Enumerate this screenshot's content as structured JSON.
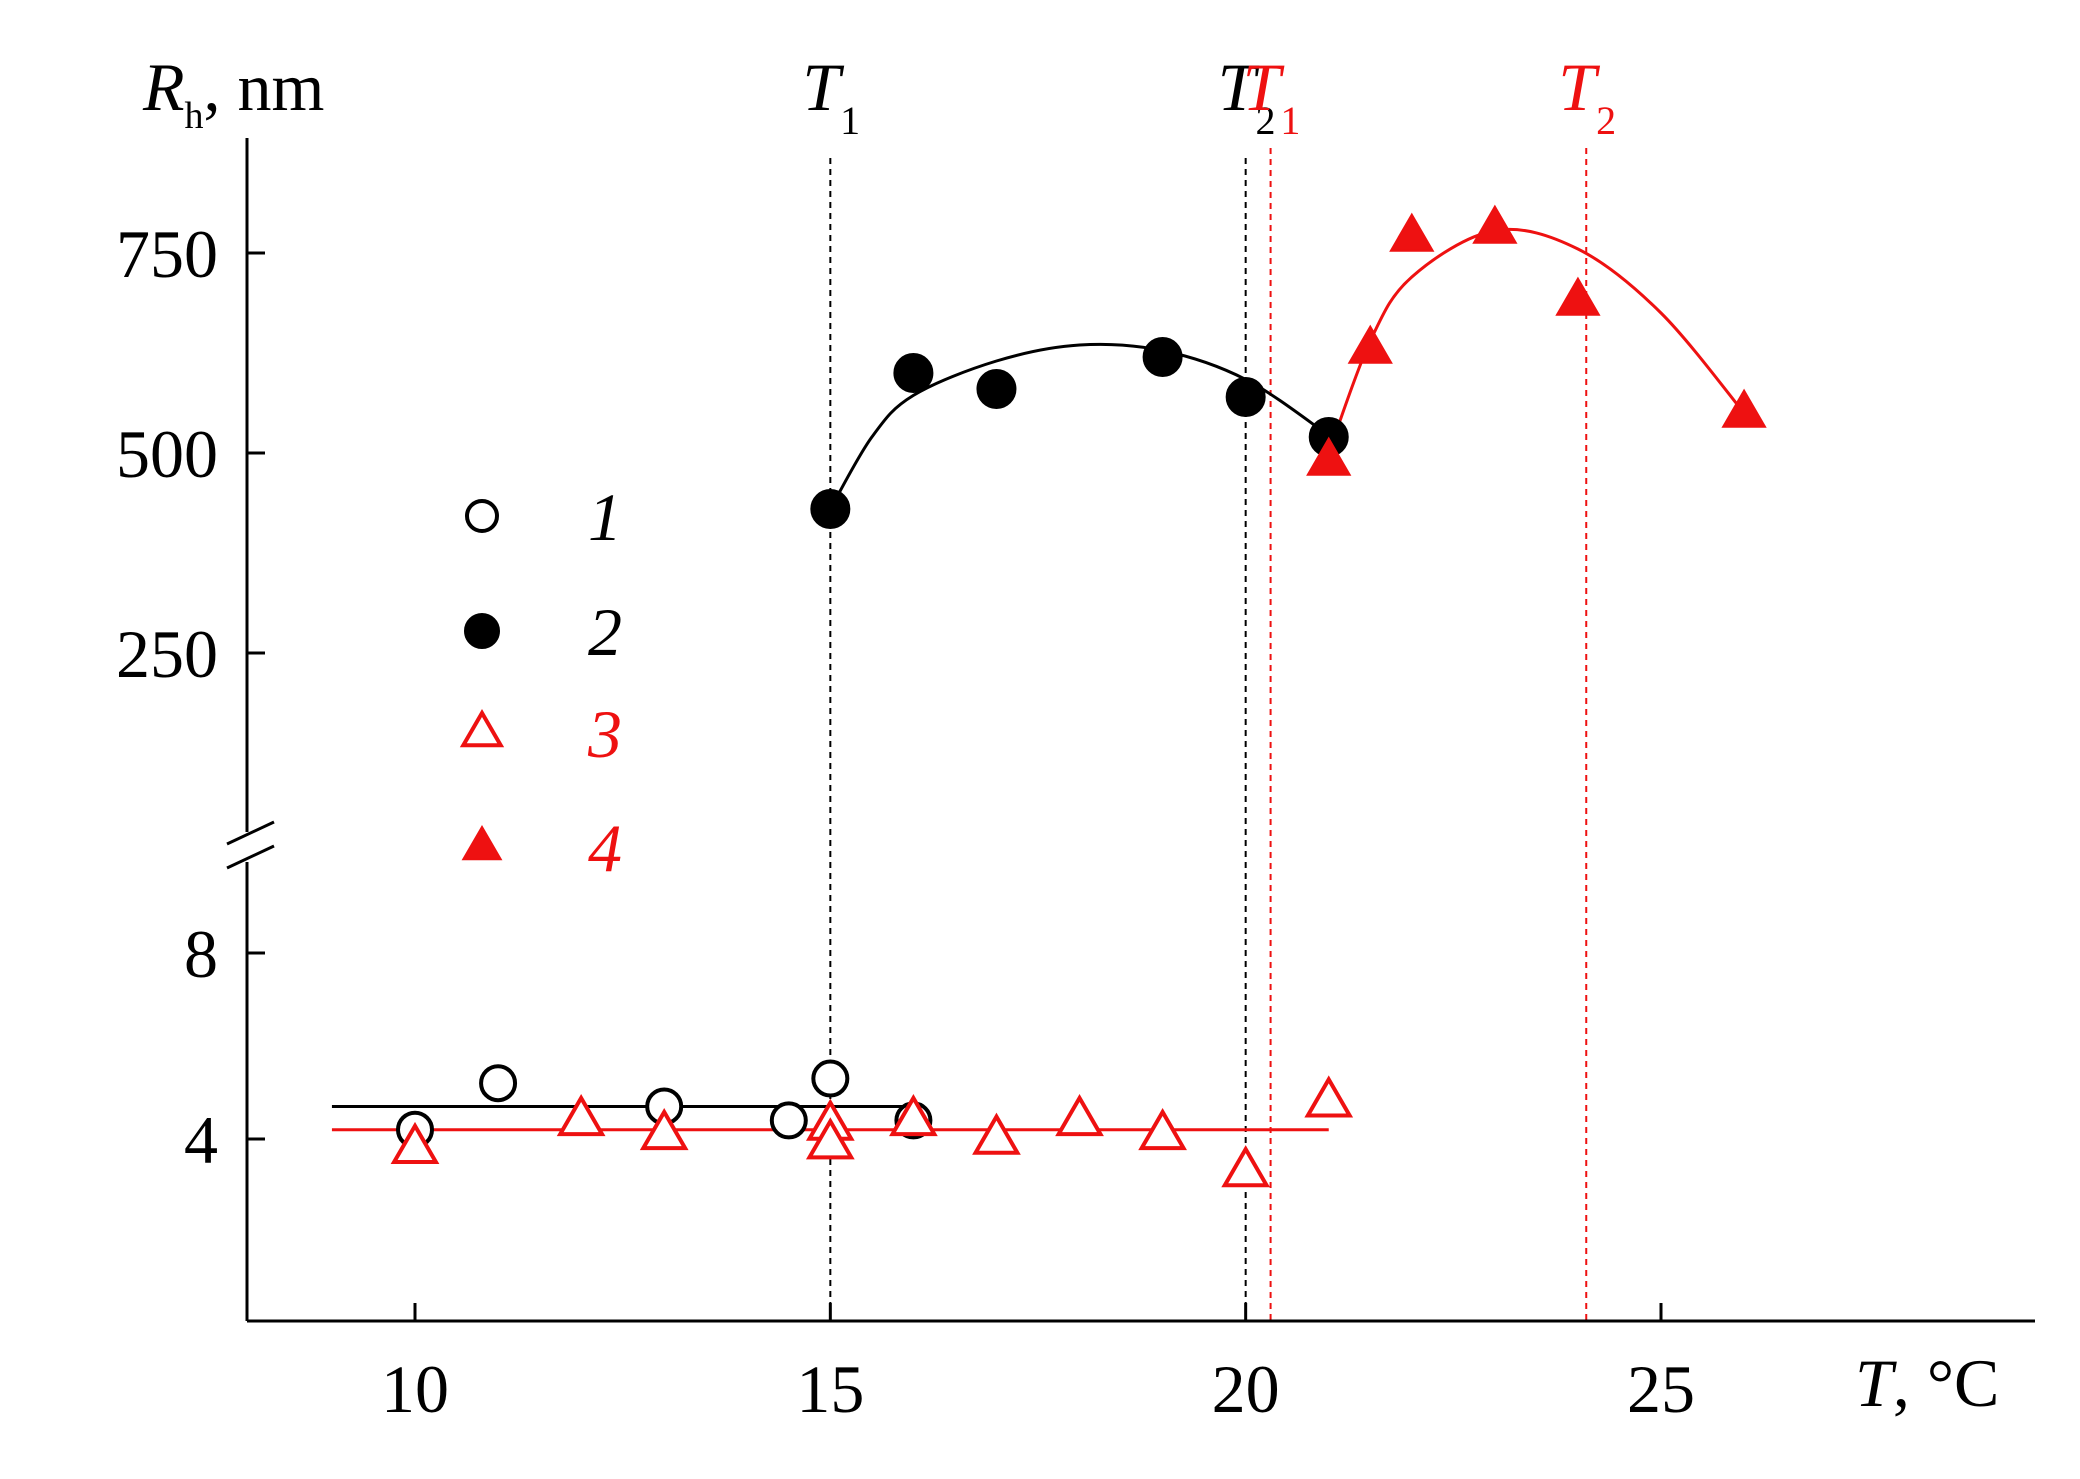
{
  "chart_data": {
    "type": "scatter",
    "title": "",
    "xlabel": {
      "symbol": "T",
      "unit": ", °C"
    },
    "ylabel": {
      "symbol": "R",
      "subscript": "h",
      "unit": ", nm"
    },
    "x_ticks": [
      10,
      15,
      20,
      25
    ],
    "y_ticks_upper": [
      250,
      500,
      750
    ],
    "y_ticks_lower": [
      4,
      8
    ],
    "xlim": [
      8,
      28
    ],
    "ylim_lower": [
      0,
      10
    ],
    "ylim_upper": [
      0,
      900
    ],
    "broken_y_axis": true,
    "colors": {
      "black": "#000000",
      "red": "#ee1111"
    },
    "vlines": [
      {
        "x": 15.0,
        "label": "T",
        "sub": "1",
        "color": "#000000"
      },
      {
        "x": 20.0,
        "label": "T",
        "sub": "2",
        "color": "#000000"
      },
      {
        "x": 20.3,
        "label": "T",
        "sub": "1",
        "color": "#ee1111"
      },
      {
        "x": 24.1,
        "label": "T",
        "sub": "2",
        "color": "#ee1111"
      }
    ],
    "legend": {
      "placement": "center-left",
      "entries": [
        "1",
        "2",
        "3",
        "4"
      ]
    },
    "series": [
      {
        "name": "1",
        "marker": "open-circle",
        "color": "#000000",
        "panel": "lower",
        "points": [
          [
            10,
            4.2
          ],
          [
            11,
            5.2
          ],
          [
            13,
            4.7
          ],
          [
            14.5,
            4.4
          ],
          [
            15,
            5.3
          ],
          [
            16,
            4.4
          ]
        ]
      },
      {
        "name": "2",
        "marker": "filled-circle",
        "color": "#000000",
        "panel": "upper",
        "points": [
          [
            15,
            430
          ],
          [
            16,
            600
          ],
          [
            17,
            580
          ],
          [
            19,
            620
          ],
          [
            20,
            570
          ],
          [
            21,
            520
          ]
        ]
      },
      {
        "name": "3",
        "marker": "open-triangle",
        "color": "#ee1111",
        "panel": "lower",
        "points": [
          [
            10,
            3.8
          ],
          [
            12,
            4.4
          ],
          [
            13,
            4.1
          ],
          [
            15,
            4.3
          ],
          [
            15,
            3.9
          ],
          [
            16,
            4.4
          ],
          [
            17,
            4.0
          ],
          [
            18,
            4.4
          ],
          [
            19,
            4.1
          ],
          [
            20,
            3.3
          ],
          [
            21,
            4.8
          ]
        ]
      },
      {
        "name": "4",
        "marker": "filled-triangle",
        "color": "#ee1111",
        "panel": "upper",
        "points": [
          [
            21,
            490
          ],
          [
            21.5,
            630
          ],
          [
            22,
            770
          ],
          [
            23,
            780
          ],
          [
            24,
            690
          ],
          [
            26,
            550
          ]
        ]
      }
    ],
    "fit_lines": [
      {
        "panel": "lower",
        "color": "#000000",
        "kind": "constant",
        "y": 4.7,
        "x_range": [
          9,
          16
        ]
      },
      {
        "panel": "lower",
        "color": "#ee1111",
        "kind": "constant",
        "y": 4.2,
        "x_range": [
          9,
          21
        ]
      },
      {
        "panel": "upper",
        "color": "#000000",
        "kind": "curve",
        "points": [
          [
            15,
            430
          ],
          [
            15.5,
            520
          ],
          [
            16,
            572
          ],
          [
            17,
            615
          ],
          [
            18,
            635
          ],
          [
            19,
            628
          ],
          [
            20,
            592
          ],
          [
            21,
            522
          ]
        ]
      },
      {
        "panel": "upper",
        "color": "#ee1111",
        "kind": "curve",
        "points": [
          [
            21,
            500
          ],
          [
            21.5,
            640
          ],
          [
            22,
            720
          ],
          [
            23,
            778
          ],
          [
            24,
            755
          ],
          [
            25,
            675
          ],
          [
            26,
            550
          ]
        ]
      }
    ]
  }
}
